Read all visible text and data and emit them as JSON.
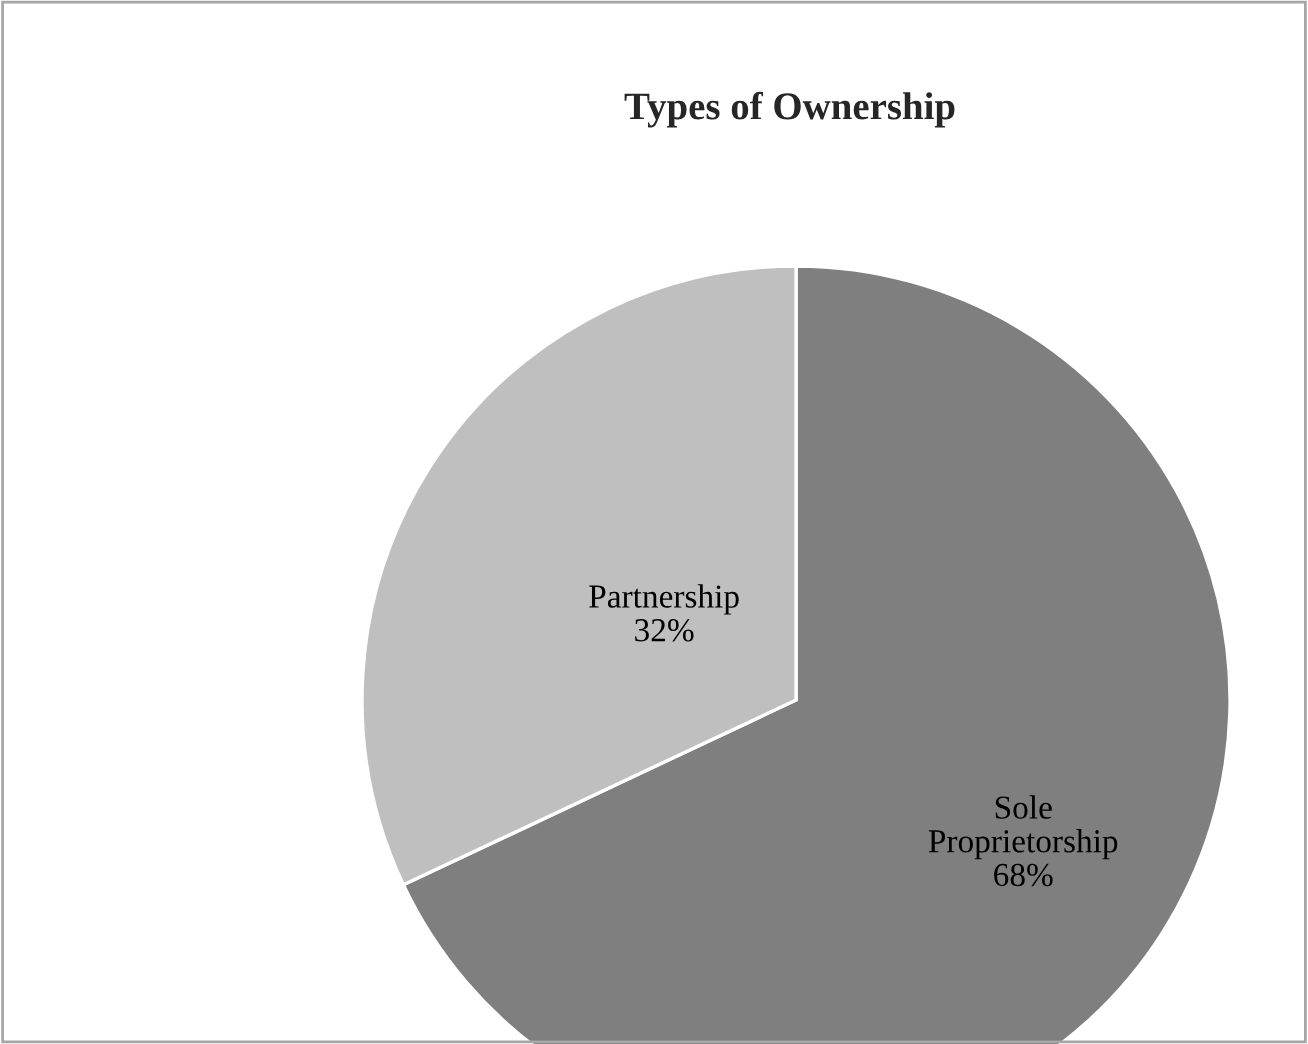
{
  "chart_data": {
    "type": "pie",
    "title": "Types of Ownership",
    "categories": [
      "Sole Proprietorship",
      "Partnership"
    ],
    "values": [
      68,
      32
    ],
    "colors": [
      "#7f7f7f",
      "#bfbfbf"
    ],
    "value_labels": [
      "68%",
      "32%"
    ],
    "legend": false
  }
}
